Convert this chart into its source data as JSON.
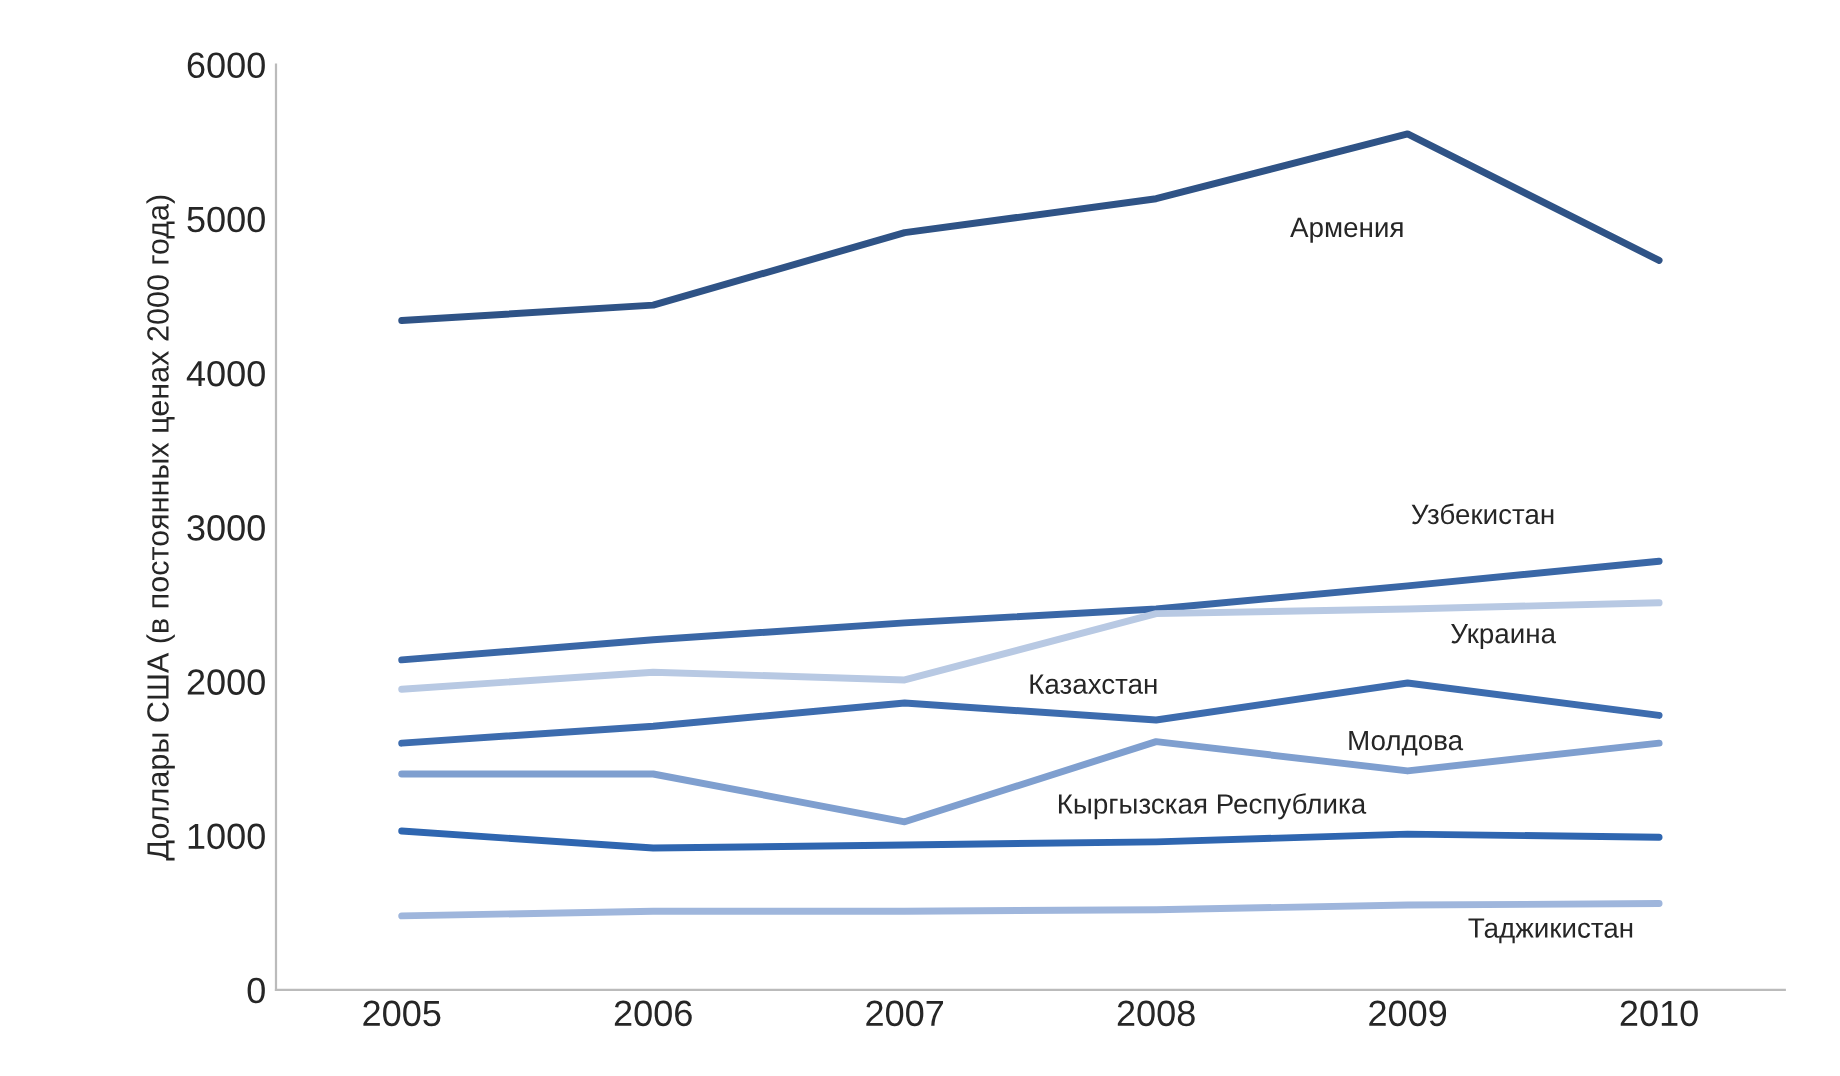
{
  "chart_data": {
    "type": "line",
    "ylabel": "Доллары США (в постоянных ценах 2000 года)",
    "categories": [
      "2005",
      "2006",
      "2007",
      "2008",
      "2009",
      "2010"
    ],
    "series": [
      {
        "name": "Армения",
        "color": "#2f5386",
        "values": [
          4340,
          4440,
          4910,
          5130,
          5550,
          4730
        ]
      },
      {
        "name": "Узбекистан",
        "color": "#3a67a6",
        "values": [
          2140,
          2270,
          2380,
          2470,
          2620,
          2780
        ]
      },
      {
        "name": "Украина",
        "color": "#b8c9e3",
        "values": [
          1950,
          2060,
          2010,
          2440,
          2470,
          2510
        ]
      },
      {
        "name": "Казахстан",
        "color": "#3d6cae",
        "values": [
          1600,
          1710,
          1860,
          1750,
          1990,
          1780
        ]
      },
      {
        "name": "Молдова",
        "color": "#7f9fcf",
        "values": [
          1400,
          1400,
          1090,
          1610,
          1420,
          1600
        ]
      },
      {
        "name": "Кыргызская Республика",
        "color": "#2f66b0",
        "values": [
          1030,
          920,
          940,
          960,
          1010,
          990
        ]
      },
      {
        "name": "Таджикистан",
        "color": "#9fb6dc",
        "values": [
          480,
          510,
          510,
          520,
          550,
          560
        ]
      }
    ],
    "ylim": [
      0,
      6000
    ],
    "yticks": [
      0,
      1000,
      2000,
      3000,
      4000,
      5000,
      6000
    ],
    "grid": false,
    "legend": false
  }
}
